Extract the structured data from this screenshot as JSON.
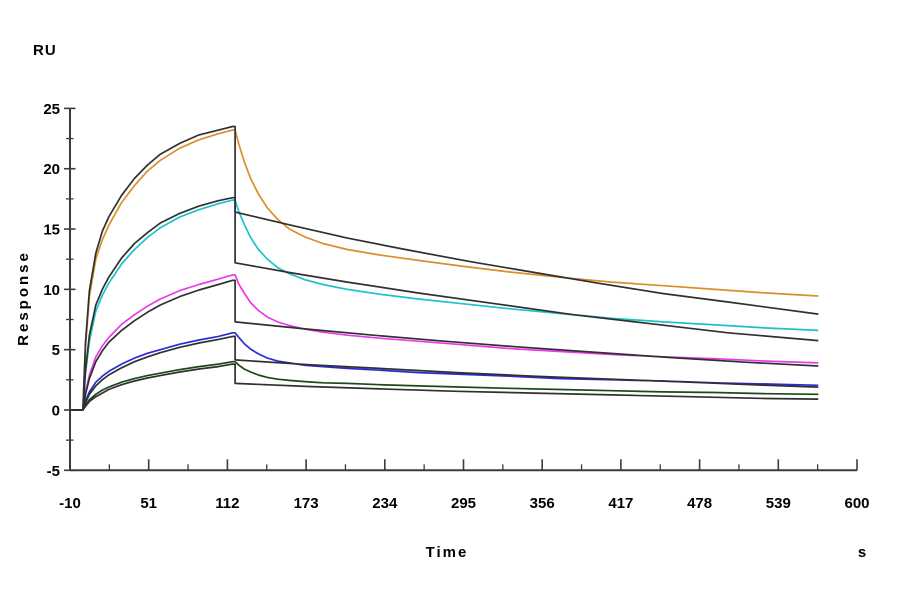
{
  "labels": {
    "y_unit": "RU",
    "y_axis_title": "Response",
    "x_axis_title": "Time",
    "x_unit": "s"
  },
  "chart_data": {
    "type": "line",
    "title": "",
    "xlabel": "Time",
    "x_unit": "s",
    "ylabel": "Response",
    "y_unit": "RU",
    "xlim": [
      -10,
      600
    ],
    "ylim": [
      -5,
      25
    ],
    "x_ticks": [
      -10,
      51,
      112,
      173,
      234,
      295,
      356,
      417,
      478,
      539,
      600
    ],
    "y_ticks": [
      -5,
      0,
      5,
      10,
      15,
      20,
      25
    ],
    "grid": false,
    "legend": "none",
    "association_start_s": 0,
    "dissociation_start_s": 118,
    "end_s": 570,
    "axis_color": "#3c3c3c",
    "fit_color": "#303030",
    "series": [
      {
        "name": "curve-1-highest",
        "color": "#DC8E28",
        "points": [
          [
            -10,
            0
          ],
          [
            -3,
            0
          ],
          [
            0,
            0
          ],
          [
            2,
            5.2
          ],
          [
            5,
            9.4
          ],
          [
            10,
            12.5
          ],
          [
            15,
            14.1
          ],
          [
            20,
            15.3
          ],
          [
            30,
            17.2
          ],
          [
            40,
            18.6
          ],
          [
            50,
            19.8
          ],
          [
            60,
            20.7
          ],
          [
            75,
            21.7
          ],
          [
            90,
            22.4
          ],
          [
            105,
            22.9
          ],
          [
            116,
            23.2
          ],
          [
            118,
            23.2
          ],
          [
            121,
            22.0
          ],
          [
            125,
            20.6
          ],
          [
            130,
            19.2
          ],
          [
            136,
            17.9
          ],
          [
            143,
            16.75
          ],
          [
            151,
            15.8
          ],
          [
            160,
            15.0
          ],
          [
            172,
            14.35
          ],
          [
            186,
            13.8
          ],
          [
            205,
            13.3
          ],
          [
            230,
            12.85
          ],
          [
            260,
            12.4
          ],
          [
            295,
            11.9
          ],
          [
            330,
            11.45
          ],
          [
            370,
            11.0
          ],
          [
            410,
            10.6
          ],
          [
            450,
            10.3
          ],
          [
            490,
            10.0
          ],
          [
            530,
            9.7
          ],
          [
            570,
            9.45
          ]
        ]
      },
      {
        "name": "curve-2",
        "color": "#1BC3C8",
        "points": [
          [
            -10,
            0
          ],
          [
            -3,
            0
          ],
          [
            0,
            0
          ],
          [
            2,
            3.0
          ],
          [
            5,
            5.7
          ],
          [
            10,
            8.2
          ],
          [
            15,
            9.5
          ],
          [
            20,
            10.5
          ],
          [
            30,
            12.1
          ],
          [
            40,
            13.3
          ],
          [
            50,
            14.3
          ],
          [
            60,
            15.1
          ],
          [
            75,
            16.0
          ],
          [
            90,
            16.6
          ],
          [
            105,
            17.1
          ],
          [
            116,
            17.4
          ],
          [
            118,
            17.4
          ],
          [
            121,
            16.4
          ],
          [
            125,
            15.4
          ],
          [
            130,
            14.3
          ],
          [
            136,
            13.3
          ],
          [
            143,
            12.5
          ],
          [
            151,
            11.8
          ],
          [
            160,
            11.3
          ],
          [
            172,
            10.8
          ],
          [
            186,
            10.4
          ],
          [
            205,
            10.0
          ],
          [
            230,
            9.6
          ],
          [
            260,
            9.2
          ],
          [
            295,
            8.8
          ],
          [
            330,
            8.4
          ],
          [
            370,
            8.0
          ],
          [
            410,
            7.6
          ],
          [
            450,
            7.3
          ],
          [
            490,
            7.05
          ],
          [
            530,
            6.8
          ],
          [
            570,
            6.6
          ]
        ]
      },
      {
        "name": "curve-3",
        "color": "#E93BE9",
        "points": [
          [
            -10,
            0
          ],
          [
            -3,
            0
          ],
          [
            0,
            0
          ],
          [
            2,
            1.5
          ],
          [
            5,
            2.9
          ],
          [
            10,
            4.4
          ],
          [
            15,
            5.3
          ],
          [
            20,
            6.0
          ],
          [
            30,
            7.1
          ],
          [
            40,
            7.9
          ],
          [
            50,
            8.6
          ],
          [
            60,
            9.2
          ],
          [
            75,
            9.9
          ],
          [
            90,
            10.4
          ],
          [
            105,
            10.85
          ],
          [
            116,
            11.2
          ],
          [
            118,
            11.2
          ],
          [
            121,
            10.4
          ],
          [
            125,
            9.7
          ],
          [
            130,
            8.9
          ],
          [
            136,
            8.25
          ],
          [
            143,
            7.7
          ],
          [
            151,
            7.3
          ],
          [
            160,
            7.0
          ],
          [
            172,
            6.7
          ],
          [
            186,
            6.45
          ],
          [
            205,
            6.2
          ],
          [
            230,
            5.95
          ],
          [
            260,
            5.7
          ],
          [
            295,
            5.4
          ],
          [
            330,
            5.1
          ],
          [
            370,
            4.85
          ],
          [
            410,
            4.6
          ],
          [
            450,
            4.4
          ],
          [
            490,
            4.25
          ],
          [
            530,
            4.05
          ],
          [
            570,
            3.9
          ]
        ]
      },
      {
        "name": "curve-4",
        "color": "#2B2BD5",
        "points": [
          [
            -10,
            0
          ],
          [
            -3,
            0
          ],
          [
            0,
            0
          ],
          [
            2,
            0.75
          ],
          [
            5,
            1.5
          ],
          [
            10,
            2.3
          ],
          [
            15,
            2.8
          ],
          [
            20,
            3.2
          ],
          [
            30,
            3.8
          ],
          [
            40,
            4.3
          ],
          [
            50,
            4.7
          ],
          [
            60,
            5.0
          ],
          [
            75,
            5.45
          ],
          [
            90,
            5.8
          ],
          [
            105,
            6.1
          ],
          [
            116,
            6.4
          ],
          [
            118,
            6.4
          ],
          [
            121,
            6.0
          ],
          [
            125,
            5.5
          ],
          [
            130,
            5.05
          ],
          [
            136,
            4.65
          ],
          [
            143,
            4.3
          ],
          [
            151,
            4.05
          ],
          [
            160,
            3.9
          ],
          [
            172,
            3.7
          ],
          [
            186,
            3.6
          ],
          [
            205,
            3.45
          ],
          [
            230,
            3.3
          ],
          [
            260,
            3.1
          ],
          [
            295,
            2.95
          ],
          [
            330,
            2.8
          ],
          [
            370,
            2.6
          ],
          [
            410,
            2.5
          ],
          [
            450,
            2.4
          ],
          [
            490,
            2.25
          ],
          [
            530,
            2.15
          ],
          [
            570,
            2.05
          ]
        ]
      },
      {
        "name": "curve-5-lowest",
        "color": "#1A4A1A",
        "points": [
          [
            -10,
            0
          ],
          [
            -3,
            0
          ],
          [
            0,
            0
          ],
          [
            2,
            0.4
          ],
          [
            5,
            0.85
          ],
          [
            10,
            1.3
          ],
          [
            15,
            1.65
          ],
          [
            20,
            1.9
          ],
          [
            30,
            2.3
          ],
          [
            40,
            2.6
          ],
          [
            50,
            2.85
          ],
          [
            60,
            3.05
          ],
          [
            75,
            3.35
          ],
          [
            90,
            3.6
          ],
          [
            105,
            3.8
          ],
          [
            116,
            4.0
          ],
          [
            118,
            4.0
          ],
          [
            121,
            3.7
          ],
          [
            125,
            3.4
          ],
          [
            130,
            3.15
          ],
          [
            136,
            2.9
          ],
          [
            143,
            2.7
          ],
          [
            151,
            2.55
          ],
          [
            160,
            2.45
          ],
          [
            172,
            2.35
          ],
          [
            186,
            2.25
          ],
          [
            205,
            2.2
          ],
          [
            230,
            2.1
          ],
          [
            260,
            2.0
          ],
          [
            295,
            1.9
          ],
          [
            330,
            1.8
          ],
          [
            370,
            1.7
          ],
          [
            410,
            1.6
          ],
          [
            450,
            1.5
          ],
          [
            490,
            1.45
          ],
          [
            530,
            1.35
          ],
          [
            570,
            1.3
          ]
        ]
      }
    ],
    "fits": [
      {
        "name": "fit-1",
        "points": [
          [
            -10,
            0
          ],
          [
            -3,
            0
          ],
          [
            0,
            0
          ],
          [
            2,
            5.6
          ],
          [
            5,
            9.9
          ],
          [
            10,
            13.0
          ],
          [
            15,
            14.8
          ],
          [
            20,
            16.0
          ],
          [
            30,
            17.8
          ],
          [
            40,
            19.2
          ],
          [
            50,
            20.3
          ],
          [
            60,
            21.2
          ],
          [
            75,
            22.1
          ],
          [
            90,
            22.8
          ],
          [
            105,
            23.2
          ],
          [
            116,
            23.5
          ],
          [
            118,
            23.5
          ],
          [
            118,
            16.4
          ],
          [
            160,
            15.35
          ],
          [
            205,
            14.25
          ],
          [
            250,
            13.3
          ],
          [
            300,
            12.3
          ],
          [
            350,
            11.4
          ],
          [
            400,
            10.5
          ],
          [
            450,
            9.65
          ],
          [
            500,
            8.95
          ],
          [
            570,
            7.95
          ]
        ]
      },
      {
        "name": "fit-2",
        "points": [
          [
            -10,
            0
          ],
          [
            -3,
            0
          ],
          [
            0,
            0
          ],
          [
            2,
            3.3
          ],
          [
            5,
            6.2
          ],
          [
            10,
            8.7
          ],
          [
            15,
            10.0
          ],
          [
            20,
            11.0
          ],
          [
            30,
            12.6
          ],
          [
            40,
            13.8
          ],
          [
            50,
            14.7
          ],
          [
            60,
            15.5
          ],
          [
            75,
            16.3
          ],
          [
            90,
            16.9
          ],
          [
            105,
            17.35
          ],
          [
            116,
            17.6
          ],
          [
            118,
            17.6
          ],
          [
            118,
            12.2
          ],
          [
            160,
            11.4
          ],
          [
            205,
            10.6
          ],
          [
            260,
            9.7
          ],
          [
            320,
            8.8
          ],
          [
            380,
            7.9
          ],
          [
            440,
            7.15
          ],
          [
            500,
            6.4
          ],
          [
            570,
            5.75
          ]
        ]
      },
      {
        "name": "fit-3",
        "points": [
          [
            -10,
            0
          ],
          [
            -3,
            0
          ],
          [
            0,
            0
          ],
          [
            2,
            1.3
          ],
          [
            5,
            2.6
          ],
          [
            10,
            4.0
          ],
          [
            15,
            4.9
          ],
          [
            20,
            5.6
          ],
          [
            30,
            6.6
          ],
          [
            40,
            7.4
          ],
          [
            50,
            8.1
          ],
          [
            60,
            8.7
          ],
          [
            75,
            9.4
          ],
          [
            90,
            9.95
          ],
          [
            105,
            10.4
          ],
          [
            116,
            10.75
          ],
          [
            118,
            10.75
          ],
          [
            118,
            7.3
          ],
          [
            170,
            6.75
          ],
          [
            225,
            6.2
          ],
          [
            280,
            5.7
          ],
          [
            335,
            5.25
          ],
          [
            395,
            4.8
          ],
          [
            455,
            4.35
          ],
          [
            515,
            3.95
          ],
          [
            570,
            3.65
          ]
        ]
      },
      {
        "name": "fit-4",
        "points": [
          [
            -10,
            0
          ],
          [
            -3,
            0
          ],
          [
            0,
            0
          ],
          [
            2,
            0.6
          ],
          [
            5,
            1.3
          ],
          [
            10,
            2.0
          ],
          [
            15,
            2.5
          ],
          [
            20,
            2.9
          ],
          [
            30,
            3.5
          ],
          [
            40,
            4.0
          ],
          [
            50,
            4.4
          ],
          [
            60,
            4.75
          ],
          [
            75,
            5.2
          ],
          [
            90,
            5.55
          ],
          [
            105,
            5.85
          ],
          [
            116,
            6.1
          ],
          [
            118,
            6.1
          ],
          [
            118,
            4.15
          ],
          [
            175,
            3.75
          ],
          [
            230,
            3.45
          ],
          [
            290,
            3.1
          ],
          [
            350,
            2.8
          ],
          [
            410,
            2.55
          ],
          [
            470,
            2.3
          ],
          [
            530,
            2.05
          ],
          [
            570,
            1.9
          ]
        ]
      },
      {
        "name": "fit-5",
        "points": [
          [
            -10,
            0
          ],
          [
            -3,
            0
          ],
          [
            0,
            0
          ],
          [
            2,
            0.3
          ],
          [
            5,
            0.7
          ],
          [
            10,
            1.1
          ],
          [
            15,
            1.4
          ],
          [
            20,
            1.7
          ],
          [
            30,
            2.1
          ],
          [
            40,
            2.4
          ],
          [
            50,
            2.65
          ],
          [
            60,
            2.85
          ],
          [
            75,
            3.15
          ],
          [
            90,
            3.4
          ],
          [
            105,
            3.6
          ],
          [
            116,
            3.8
          ],
          [
            118,
            3.8
          ],
          [
            118,
            2.2
          ],
          [
            175,
            1.95
          ],
          [
            230,
            1.75
          ],
          [
            290,
            1.55
          ],
          [
            350,
            1.4
          ],
          [
            410,
            1.25
          ],
          [
            470,
            1.1
          ],
          [
            530,
            0.95
          ],
          [
            570,
            0.9
          ]
        ]
      }
    ]
  }
}
